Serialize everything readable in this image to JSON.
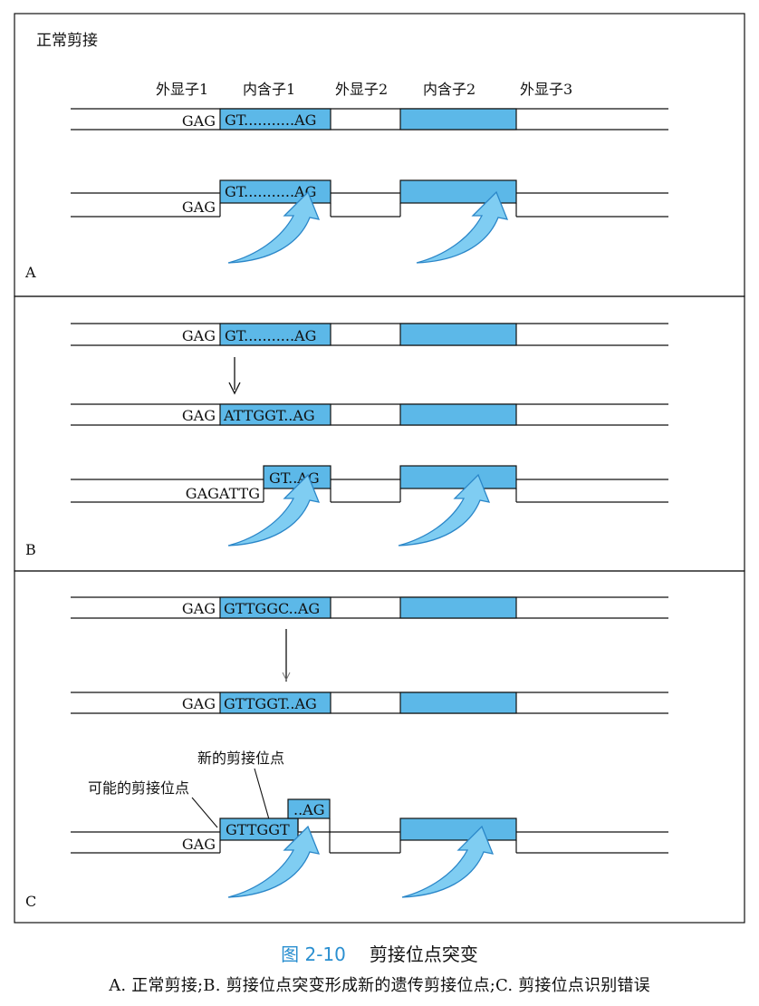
{
  "colors": {
    "intron_fill": "#5cb8e8",
    "arrow_fill": "#7fcdf2",
    "arrow_edge": "#2a86c8",
    "caption_number": "#2a8fd0"
  },
  "panel_a": {
    "heading": "正常剪接",
    "letter": "A",
    "labels": {
      "exon1": "外显子1",
      "intron1": "内含子1",
      "exon2": "外显子2",
      "intron2": "内含子2",
      "exon3": "外显子3"
    },
    "row1": {
      "left_seq": "GAG",
      "intron_seq": "GT...........AG"
    },
    "row2": {
      "left_seq": "GAG",
      "intron_seq": "GT...........AG"
    }
  },
  "panel_b": {
    "letter": "B",
    "row1": {
      "left_seq": "GAG",
      "intron_seq": "GT...........AG"
    },
    "row2": {
      "left_seq": "GAG",
      "intron_seq": "ATTGGT..AG"
    },
    "row3": {
      "left_seq": "GAGATTG",
      "intron_seq": "GT..AG"
    }
  },
  "panel_c": {
    "letter": "C",
    "row1": {
      "left_seq": "GAG",
      "intron_seq": "GTTGGC..AG"
    },
    "row2": {
      "left_seq": "GAG",
      "intron_seq": "GTTGGT..AG"
    },
    "row3": {
      "left_seq": "GAG",
      "seg1_seq": "GTTGGT",
      "seg2_seq": "..AG"
    },
    "label_new_site": "新的剪接位点",
    "label_possible_site": "可能的剪接位点"
  },
  "caption": {
    "number": "图 2-10",
    "title": "剪接位点突变",
    "subtitle": "A. 正常剪接;B. 剪接位点突变形成新的遗传剪接位点;C. 剪接位点识别错误"
  }
}
